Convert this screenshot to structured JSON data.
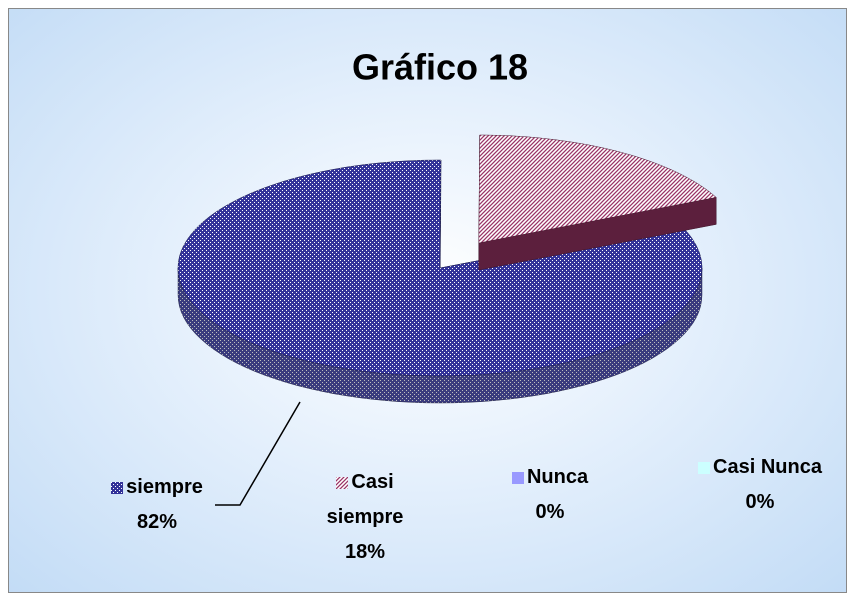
{
  "chart_data": {
    "type": "pie",
    "title": "Gráfico 18",
    "categories": [
      "siempre",
      "Casi siempre",
      "Nunca",
      "Casi Nunca"
    ],
    "values": [
      82,
      18,
      0,
      0
    ],
    "value_labels": [
      "82%",
      "18%",
      "0%",
      "0%"
    ],
    "colors": [
      "#333399",
      "#993366",
      "#9999ff",
      "#ccffff"
    ]
  }
}
